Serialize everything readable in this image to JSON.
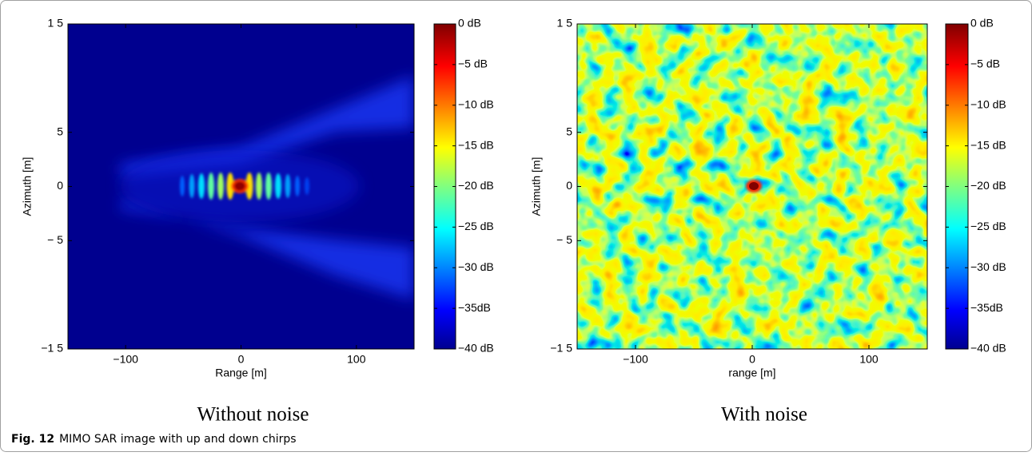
{
  "figure": {
    "panels": [
      {
        "subtitle": "Without noise",
        "xlabel": "Range [m]",
        "ylabel": "Azimuth [m]",
        "xlim": [
          -150,
          150
        ],
        "ylim": [
          -15,
          15
        ],
        "xticks": [
          {
            "value": -100,
            "label": "−100"
          },
          0,
          100
        ],
        "yticks": [
          {
            "value": 15,
            "label": "1 5"
          },
          5,
          0,
          {
            "value": -5,
            "label": "− 5"
          },
          {
            "value": -15,
            "label": "−1 5"
          }
        ],
        "colorbar": {
          "lim": [
            -40,
            0
          ],
          "ticks": [
            {
              "value": 0,
              "label": "0 dB"
            },
            {
              "value": -5,
              "label": "−5 dB"
            },
            {
              "value": -10,
              "label": "−10 dB"
            },
            {
              "value": -15,
              "label": "−15 dB"
            },
            {
              "value": -20,
              "label": "−20 dB"
            },
            {
              "value": -25,
              "label": "−25 dB"
            },
            {
              "value": -30,
              "label": "−30 dB"
            },
            {
              "value": -35,
              "label": "−35dB"
            },
            {
              "value": -40,
              "label": "−40 dB"
            }
          ]
        }
      },
      {
        "subtitle": "With noise",
        "xlabel": "range [m]",
        "ylabel": "Azimuth [m]",
        "xlim": [
          -150,
          150
        ],
        "ylim": [
          -15,
          15
        ],
        "xticks": [
          {
            "value": -100,
            "label": "−100"
          },
          0,
          100
        ],
        "yticks": [
          {
            "value": 15,
            "label": "1 5"
          },
          5,
          0,
          {
            "value": -5,
            "label": "− 5"
          },
          {
            "value": -15,
            "label": "−1 5"
          }
        ],
        "colorbar": {
          "lim": [
            -40,
            0
          ],
          "ticks": [
            {
              "value": 0,
              "label": "0 dB"
            },
            {
              "value": -5,
              "label": "−5 dB"
            },
            {
              "value": -10,
              "label": "−10 dB"
            },
            {
              "value": -15,
              "label": "−15 dB"
            },
            {
              "value": -20,
              "label": "−20 dB"
            },
            {
              "value": -25,
              "label": "−25 dB"
            },
            {
              "value": -30,
              "label": "−30 dB"
            },
            {
              "value": -35,
              "label": "−35dB"
            },
            {
              "value": -40,
              "label": "−40 dB"
            }
          ]
        }
      }
    ],
    "caption": {
      "label": "Fig. 12",
      "text": "MIMO SAR image with up and down chirps"
    }
  }
}
